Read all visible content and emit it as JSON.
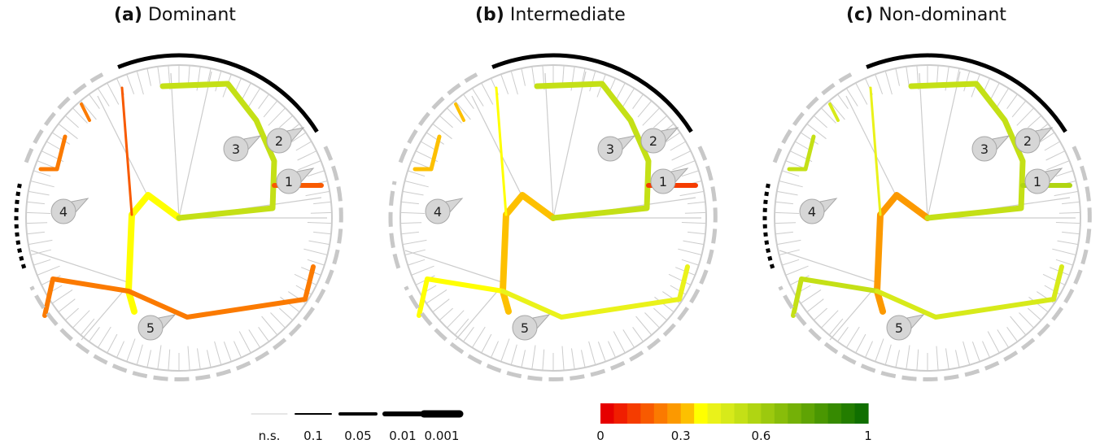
{
  "panels": [
    {
      "letter": "(a)",
      "name": "Dominant",
      "clade_labels": [
        "1",
        "2",
        "3",
        "4",
        "5"
      ]
    },
    {
      "letter": "(b)",
      "name": "Intermediate",
      "clade_labels": [
        "1",
        "2",
        "3",
        "4",
        "5"
      ]
    },
    {
      "letter": "(c)",
      "name": "Non-dominant",
      "clade_labels": [
        "1",
        "2",
        "3",
        "4",
        "5"
      ]
    }
  ],
  "significance_legend": {
    "labels": [
      "n.s.",
      "0.1",
      "0.05",
      "0.01",
      "0.001"
    ]
  },
  "color_scale": {
    "tick_labels": [
      "0",
      "0.3",
      "0.6",
      "1"
    ],
    "colors": [
      "#e60000",
      "#f01e00",
      "#f53c00",
      "#f85a00",
      "#fb7a00",
      "#fc9900",
      "#fdc000",
      "#ffff00",
      "#eaf21a",
      "#d7ea1a",
      "#c4e016",
      "#b0d512",
      "#9cc90e",
      "#88bd0a",
      "#74b107",
      "#5fa404",
      "#4a9702",
      "#368a01",
      "#237d00",
      "#106f00"
    ]
  },
  "colors": {
    "ns_branch": "#cccccc",
    "arc_significant": "#000000",
    "arc_dashed": "#c8c8c8",
    "marker_fill": "#d6d6d6",
    "marker_stroke": "#a8a8a8"
  }
}
